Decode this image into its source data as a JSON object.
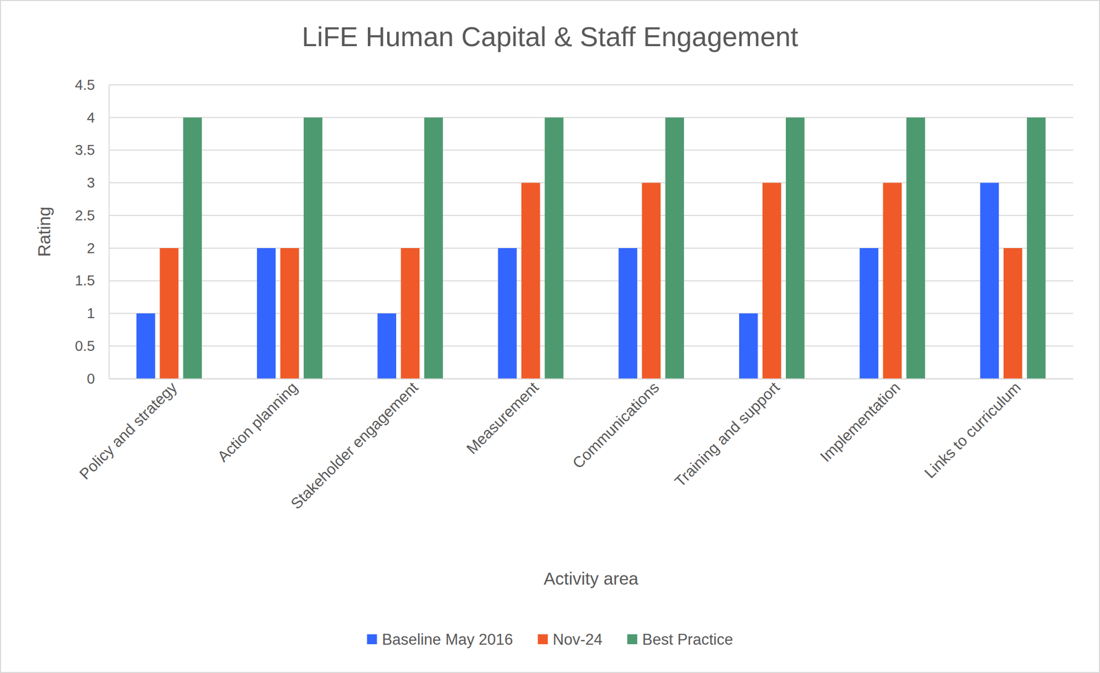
{
  "chart_data": {
    "type": "bar",
    "title": "LiFE Human Capital & Staff Engagement",
    "x_label": "Activity area",
    "y_label": "Rating",
    "categories": [
      "Policy and strategy",
      "Action planning",
      "Stakeholder engagement",
      "Measurement",
      "Communications",
      "Training and support",
      "Implementation",
      "Links to curriculum"
    ],
    "series": [
      {
        "name": "Baseline May 2016",
        "color": "#3366ff",
        "values": [
          1,
          2,
          1,
          2,
          2,
          1,
          2,
          3
        ]
      },
      {
        "name": "Nov-24",
        "color": "#f05a28",
        "values": [
          2,
          2,
          2,
          3,
          3,
          3,
          3,
          2
        ]
      },
      {
        "name": "Best Practice",
        "color": "#4e9a70",
        "values": [
          4,
          4,
          4,
          4,
          4,
          4,
          4,
          4
        ]
      }
    ],
    "ylim": [
      0,
      4.5
    ],
    "yticks": [
      0,
      0.5,
      1,
      1.5,
      2,
      2.5,
      3,
      3.5,
      4,
      4.5
    ],
    "grid": true,
    "legend": "bottom"
  }
}
